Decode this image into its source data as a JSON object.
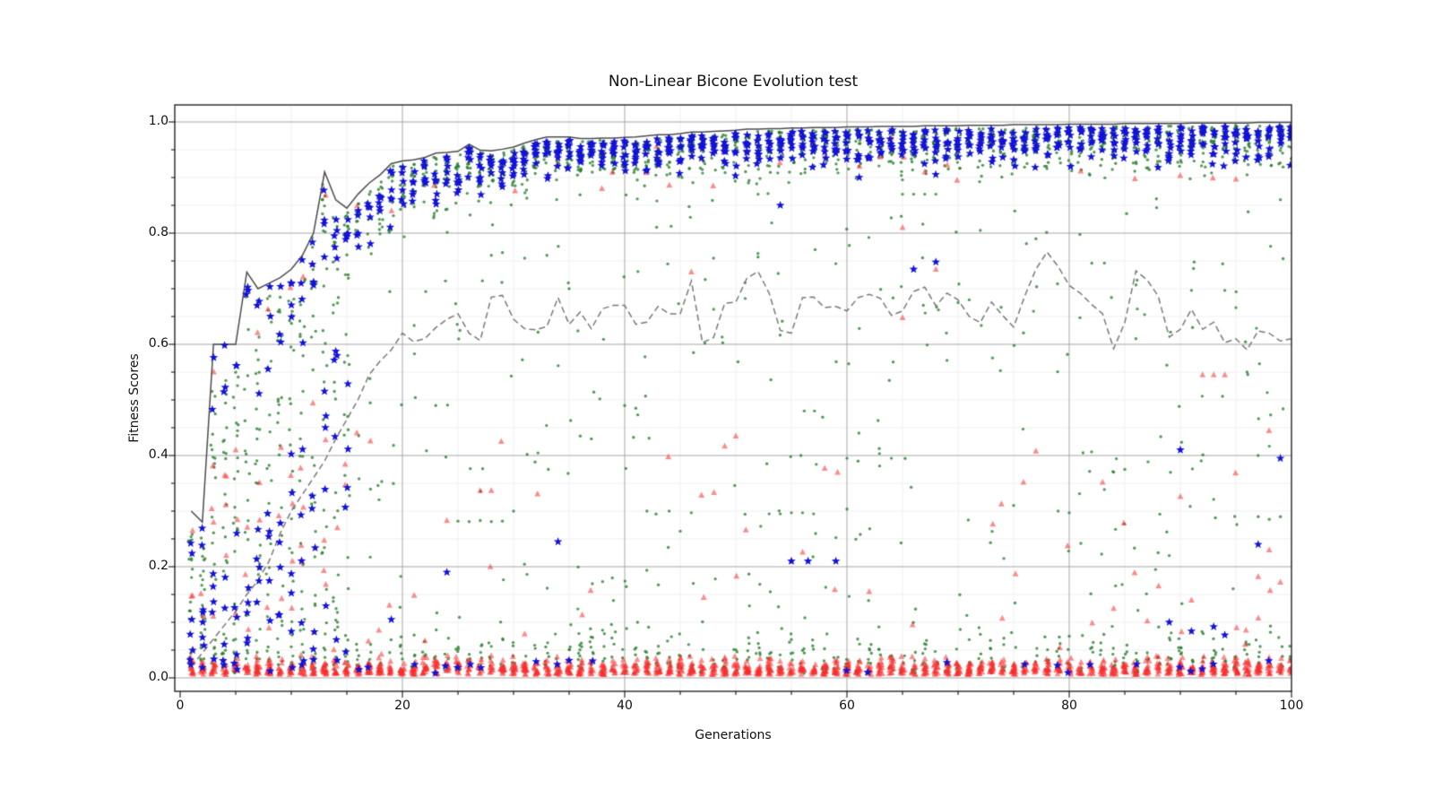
{
  "chart_data": {
    "type": "scatter",
    "title": "Non-Linear Bicone Evolution test",
    "xlabel": "Generations",
    "ylabel": "Fitness Scores",
    "xlim": [
      0,
      100
    ],
    "ylim": [
      -0.025,
      1.03
    ],
    "x_ticks": [
      0,
      20,
      40,
      60,
      80,
      100
    ],
    "y_ticks": [
      "0.0",
      "0.2",
      "0.4",
      "0.6",
      "0.8",
      "1.0"
    ],
    "x_minor_step": 5,
    "y_minor_step": 0.05,
    "grid": {
      "major_color": "#a6a6a6",
      "minor_color": "#efefef"
    },
    "colors": {
      "best_line": "#4d4d4d",
      "mean_line": "#7a7a7a",
      "green_dot": "rgba(40,125,45,0.78)",
      "red_triangle": "rgba(250,45,45,0.55)",
      "blue_star": "#1212d9",
      "frame": "#000000"
    },
    "series": [
      {
        "name": "best-fitness-line",
        "style": "solid",
        "x_start": 1,
        "y": [
          0.3,
          0.28,
          0.6,
          0.6,
          0.6,
          0.73,
          0.7,
          0.71,
          0.72,
          0.735,
          0.76,
          0.8,
          0.91,
          0.86,
          0.845,
          0.87,
          0.89,
          0.905,
          0.925,
          0.93,
          0.932,
          0.936,
          0.944,
          0.945,
          0.947,
          0.96,
          0.949,
          0.948,
          0.951,
          0.955,
          0.962,
          0.968,
          0.973,
          0.973,
          0.973,
          0.97,
          0.97,
          0.971,
          0.971,
          0.972,
          0.973,
          0.975,
          0.977,
          0.977,
          0.979,
          0.982,
          0.982,
          0.983,
          0.984,
          0.985,
          0.987,
          0.987,
          0.988,
          0.988,
          0.989,
          0.989,
          0.99,
          0.99,
          0.99,
          0.991,
          0.991,
          0.991,
          0.992,
          0.992,
          0.992,
          0.992,
          0.993,
          0.993,
          0.993,
          0.993,
          0.994,
          0.994,
          0.994,
          0.994,
          0.995,
          0.995,
          0.995,
          0.995,
          0.995,
          0.996,
          0.996,
          0.996,
          0.996,
          0.996,
          0.997,
          0.997,
          0.997,
          0.997,
          0.997,
          0.997,
          0.998,
          0.998,
          0.998,
          0.998,
          0.998,
          0.998,
          0.999,
          0.999,
          0.999,
          0.999
        ]
      },
      {
        "name": "mean-fitness-line",
        "style": "dashed",
        "x_start": 1,
        "y": [
          0.02,
          0.045,
          0.07,
          0.095,
          0.12,
          0.15,
          0.175,
          0.21,
          0.26,
          0.3,
          0.33,
          0.36,
          0.39,
          0.43,
          0.465,
          0.5,
          0.545,
          0.57,
          0.59,
          0.62,
          0.605,
          0.61,
          0.63,
          0.645,
          0.655,
          0.62,
          0.607,
          0.685,
          0.688,
          0.645,
          0.628,
          0.626,
          0.632,
          0.684,
          0.636,
          0.658,
          0.628,
          0.664,
          0.67,
          0.67,
          0.636,
          0.64,
          0.668,
          0.655,
          0.655,
          0.714,
          0.603,
          0.612,
          0.674,
          0.676,
          0.719,
          0.731,
          0.692,
          0.625,
          0.62,
          0.684,
          0.685,
          0.666,
          0.668,
          0.66,
          0.684,
          0.69,
          0.683,
          0.652,
          0.66,
          0.695,
          0.703,
          0.669,
          0.692,
          0.68,
          0.65,
          0.639,
          0.676,
          0.652,
          0.631,
          0.687,
          0.735,
          0.766,
          0.74,
          0.706,
          0.692,
          0.672,
          0.655,
          0.592,
          0.639,
          0.732,
          0.716,
          0.687,
          0.613,
          0.627,
          0.663,
          0.627,
          0.64,
          0.603,
          0.61,
          0.59,
          0.624,
          0.62,
          0.606,
          0.61
        ]
      }
    ],
    "scatter_series": [
      {
        "name": "population-green-dots",
        "marker": "dot"
      },
      {
        "name": "failed-red-triangles",
        "marker": "triangle"
      },
      {
        "name": "elite-blue-stars",
        "marker": "star"
      }
    ],
    "extra_points": {
      "blue": [
        [
          4,
          0.598
        ],
        [
          19,
          0.105
        ],
        [
          24,
          0.19
        ],
        [
          34,
          0.245
        ],
        [
          54,
          0.85
        ],
        [
          55,
          0.21
        ],
        [
          56.5,
          0.21
        ],
        [
          59,
          0.21
        ],
        [
          66,
          0.735
        ],
        [
          68,
          0.748
        ],
        [
          83,
          0.968
        ],
        [
          87,
          0.95
        ],
        [
          89,
          0.1
        ],
        [
          90,
          0.973
        ],
        [
          90,
          0.41
        ],
        [
          91,
          0.084
        ],
        [
          92,
          0.961
        ],
        [
          93,
          0.092
        ],
        [
          94,
          0.077
        ],
        [
          97,
          0.24
        ],
        [
          99,
          0.395
        ]
      ],
      "red": [
        [
          5,
          0.41
        ],
        [
          24,
          0.283
        ],
        [
          27,
          0.337
        ],
        [
          28,
          0.337
        ],
        [
          31,
          0.079
        ],
        [
          46,
          0.73
        ],
        [
          49,
          0.417
        ],
        [
          50,
          0.435
        ],
        [
          55,
          0.21
        ],
        [
          58,
          0.377
        ],
        [
          62,
          0.155
        ],
        [
          63,
          0.937
        ],
        [
          65,
          0.81
        ],
        [
          65,
          0.648
        ],
        [
          67,
          0.91
        ],
        [
          68,
          0.735
        ],
        [
          77,
          0.408
        ],
        [
          83,
          0.352
        ],
        [
          84,
          0.125
        ],
        [
          90,
          0.326
        ],
        [
          91,
          0.14
        ],
        [
          92,
          0.545
        ],
        [
          93,
          0.545
        ],
        [
          94,
          0.545
        ],
        [
          95,
          0.976
        ],
        [
          95,
          0.897
        ],
        [
          97,
          0.182
        ],
        [
          98,
          0.23
        ],
        [
          99,
          0.172
        ]
      ],
      "green": [
        [
          23,
          0.49
        ],
        [
          25,
          0.282
        ],
        [
          26,
          0.281
        ],
        [
          27,
          0.283
        ],
        [
          28,
          0.281
        ],
        [
          28,
          0.76
        ],
        [
          29,
          0.765
        ],
        [
          29,
          0.282
        ],
        [
          30,
          0.3
        ],
        [
          31,
          0.755
        ],
        [
          33,
          0.76
        ],
        [
          35,
          0.7
        ],
        [
          36,
          0.435
        ],
        [
          37,
          0.43
        ],
        [
          40,
          0.49
        ],
        [
          41,
          0.485
        ],
        [
          42,
          0.3
        ],
        [
          44,
          0.3
        ],
        [
          46,
          0.297
        ],
        [
          48,
          0.755
        ],
        [
          52,
          0.757
        ],
        [
          52,
          0.87
        ],
        [
          53,
          0.295
        ],
        [
          54,
          0.295
        ],
        [
          55,
          0.297
        ],
        [
          56,
          0.297
        ],
        [
          57,
          0.295
        ],
        [
          59,
          0.745
        ],
        [
          60,
          0.395
        ],
        [
          61,
          0.39
        ],
        [
          64,
          0.395
        ],
        [
          65,
          0.87
        ],
        [
          66,
          0.87
        ],
        [
          67,
          0.87
        ],
        [
          68,
          0.87
        ],
        [
          70,
          0.675
        ],
        [
          71,
          0.68
        ],
        [
          72,
          0.805
        ],
        [
          75,
          0.31
        ],
        [
          77,
          0.79
        ],
        [
          79,
          0.3
        ],
        [
          80,
          0.297
        ],
        [
          84,
          0.37
        ],
        [
          85,
          0.375
        ],
        [
          86,
          0.61
        ],
        [
          88,
          0.225
        ],
        [
          89,
          0.22
        ],
        [
          91,
          0.697
        ],
        [
          94,
          0.697
        ],
        [
          95,
          0.666
        ],
        [
          96,
          0.55
        ],
        [
          96,
          0.905
        ],
        [
          97,
          0.29
        ],
        [
          97,
          0.4
        ],
        [
          98,
          0.285
        ],
        [
          98,
          0.94
        ],
        [
          99,
          0.29
        ],
        [
          99,
          0.86
        ]
      ]
    },
    "scatter_model": {
      "seed": 7,
      "generations": 100,
      "converge_start": 4,
      "converge_span": 24,
      "top_green_min": 3,
      "top_green_span": 13,
      "top_star_min": 2,
      "top_star_span": 6,
      "top_spread_base": 0.015,
      "top_spread_wide": 0.09,
      "early_gen_limit": 16,
      "mid_green_early": 14,
      "mid_green_early_var": 6,
      "mid_green_late": 2,
      "mid_green_late_var": 4,
      "early_star_count": 5,
      "top_red_prob": 0.45,
      "bottom_red_min": 10,
      "bottom_red_var": 8,
      "bottom_red_sigma": 0.013,
      "bottom_green_min": 3,
      "bottom_green_var": 5,
      "bottom_green_sigma": 0.03,
      "bottom_star_prob": 0.28
    }
  }
}
